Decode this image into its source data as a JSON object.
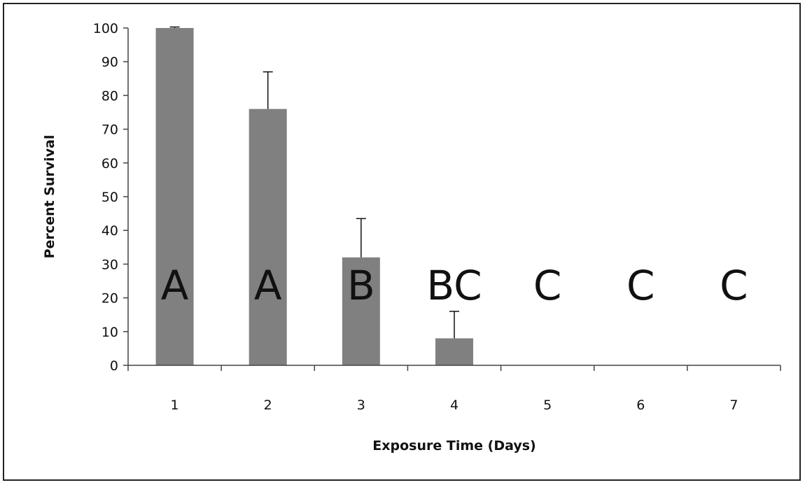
{
  "chart_data": {
    "type": "bar",
    "categories": [
      "1",
      "2",
      "3",
      "4",
      "5",
      "6",
      "7"
    ],
    "values": [
      100,
      76,
      32,
      8,
      0,
      0,
      0
    ],
    "error_upper": [
      0.3,
      11,
      11.5,
      8,
      0,
      0,
      0
    ],
    "significance_letters": [
      "A",
      "A",
      "B",
      "BC",
      "C",
      "C",
      "C"
    ],
    "xlabel": "Exposure Time (Days)",
    "ylabel": "Percent Survival",
    "ylim": [
      0,
      100
    ],
    "yticks": [
      "0",
      "10",
      "20",
      "30",
      "40",
      "50",
      "60",
      "70",
      "80",
      "90",
      "100"
    ],
    "grid": false,
    "bar_color": "#808080"
  }
}
